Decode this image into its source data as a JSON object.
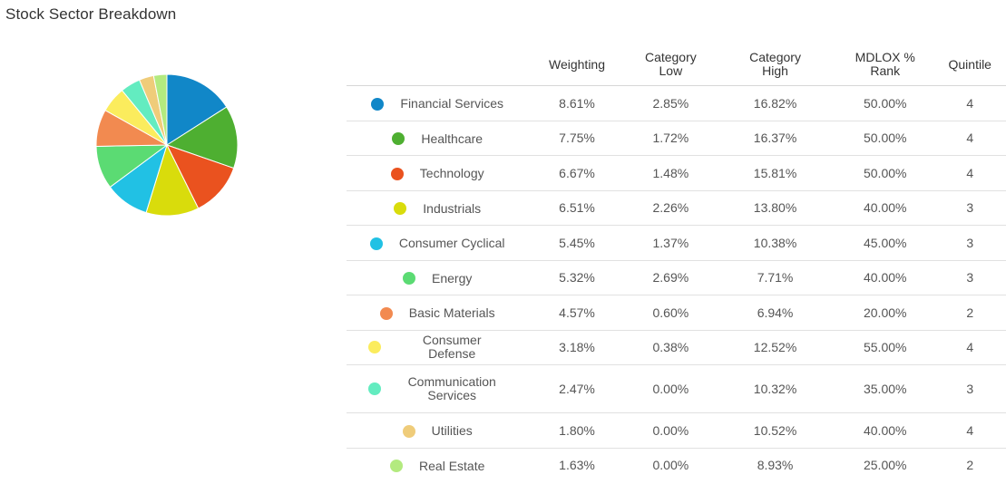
{
  "title": "Stock Sector Breakdown",
  "columns": {
    "weighting": "Weighting",
    "category_low": "Category Low",
    "category_high": "Category High",
    "rank": "MDLOX % Rank",
    "quintile": "Quintile"
  },
  "rows": [
    {
      "sector": "Financial Services",
      "color": "#1187c8",
      "weighting": "8.61%",
      "category_low": "2.85%",
      "category_high": "16.82%",
      "rank": "50.00%",
      "quintile": "4"
    },
    {
      "sector": "Healthcare",
      "color": "#4eaf31",
      "weighting": "7.75%",
      "category_low": "1.72%",
      "category_high": "16.37%",
      "rank": "50.00%",
      "quintile": "4"
    },
    {
      "sector": "Technology",
      "color": "#ea521f",
      "weighting": "6.67%",
      "category_low": "1.48%",
      "category_high": "15.81%",
      "rank": "50.00%",
      "quintile": "4"
    },
    {
      "sector": "Industrials",
      "color": "#d9dc0c",
      "weighting": "6.51%",
      "category_low": "2.26%",
      "category_high": "13.80%",
      "rank": "40.00%",
      "quintile": "3"
    },
    {
      "sector": "Consumer Cyclical",
      "color": "#21c1e4",
      "weighting": "5.45%",
      "category_low": "1.37%",
      "category_high": "10.38%",
      "rank": "45.00%",
      "quintile": "3"
    },
    {
      "sector": "Energy",
      "color": "#5bdb73",
      "weighting": "5.32%",
      "category_low": "2.69%",
      "category_high": "7.71%",
      "rank": "40.00%",
      "quintile": "3"
    },
    {
      "sector": "Basic Materials",
      "color": "#f28a50",
      "weighting": "4.57%",
      "category_low": "0.60%",
      "category_high": "6.94%",
      "rank": "20.00%",
      "quintile": "2"
    },
    {
      "sector": "Consumer Defense",
      "color": "#fbec5d",
      "weighting": "3.18%",
      "category_low": "0.38%",
      "category_high": "12.52%",
      "rank": "55.00%",
      "quintile": "4"
    },
    {
      "sector": "Communication Services",
      "color": "#63ecc0",
      "weighting": "2.47%",
      "category_low": "0.00%",
      "category_high": "10.32%",
      "rank": "35.00%",
      "quintile": "3"
    },
    {
      "sector": "Utilities",
      "color": "#efcc7a",
      "weighting": "1.80%",
      "category_low": "0.00%",
      "category_high": "10.52%",
      "rank": "40.00%",
      "quintile": "4"
    },
    {
      "sector": "Real Estate",
      "color": "#b3ea7f",
      "weighting": "1.63%",
      "category_low": "0.00%",
      "category_high": "8.93%",
      "rank": "25.00%",
      "quintile": "2"
    }
  ],
  "chart_data": {
    "type": "pie",
    "title": "",
    "categories": [
      "Financial Services",
      "Healthcare",
      "Technology",
      "Industrials",
      "Consumer Cyclical",
      "Energy",
      "Basic Materials",
      "Consumer Defense",
      "Communication Services",
      "Utilities",
      "Real Estate"
    ],
    "values": [
      8.61,
      7.75,
      6.67,
      6.51,
      5.45,
      5.32,
      4.57,
      3.18,
      2.47,
      1.8,
      1.63
    ],
    "colors": [
      "#1187c8",
      "#4eaf31",
      "#ea521f",
      "#d9dc0c",
      "#21c1e4",
      "#5bdb73",
      "#f28a50",
      "#fbec5d",
      "#63ecc0",
      "#efcc7a",
      "#b3ea7f"
    ],
    "start_angle": "12 o'clock",
    "direction": "clockwise",
    "legend": "table-right"
  }
}
